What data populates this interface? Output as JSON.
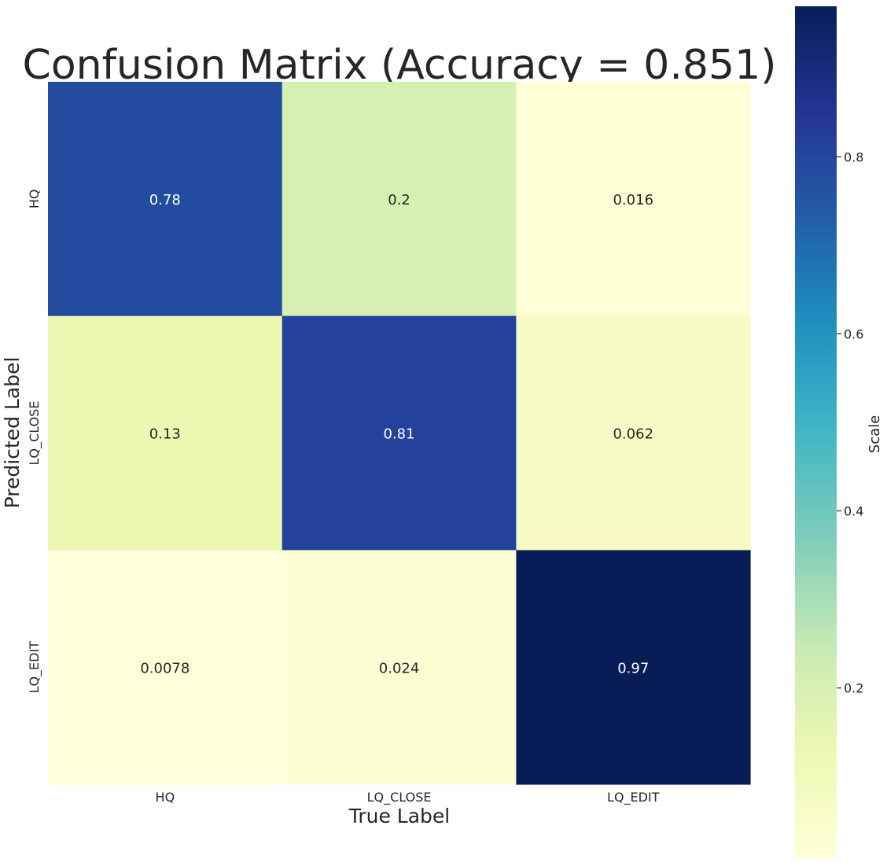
{
  "chart_data": {
    "type": "heatmap",
    "title": "Confusion Matrix (Accuracy = 0.851)",
    "xlabel": "True Label",
    "ylabel": "Predicted Label",
    "x_categories": [
      "HQ",
      "LQ_CLOSE",
      "LQ_EDIT"
    ],
    "y_categories": [
      "HQ",
      "LQ_CLOSE",
      "LQ_EDIT"
    ],
    "values": [
      [
        0.78,
        0.2,
        0.016
      ],
      [
        0.13,
        0.81,
        0.062
      ],
      [
        0.0078,
        0.024,
        0.97
      ]
    ],
    "value_labels": [
      [
        "0.78",
        "0.2",
        "0.016"
      ],
      [
        "0.13",
        "0.81",
        "0.062"
      ],
      [
        "0.0078",
        "0.024",
        "0.97"
      ]
    ],
    "colorbar": {
      "label": "Scale",
      "range": [
        0.0078,
        0.97
      ],
      "ticks": [
        0.2,
        0.4,
        0.6,
        0.8
      ],
      "tick_labels": [
        "0.2",
        "0.4",
        "0.6",
        "0.8"
      ]
    },
    "colormap": "YlGnBu",
    "colormap_stops": [
      "#ffffd9",
      "#edf8b1",
      "#c7e9b4",
      "#7fcdbb",
      "#41b6c4",
      "#1d91c0",
      "#225ea8",
      "#253494",
      "#081d58"
    ],
    "grid": false
  }
}
